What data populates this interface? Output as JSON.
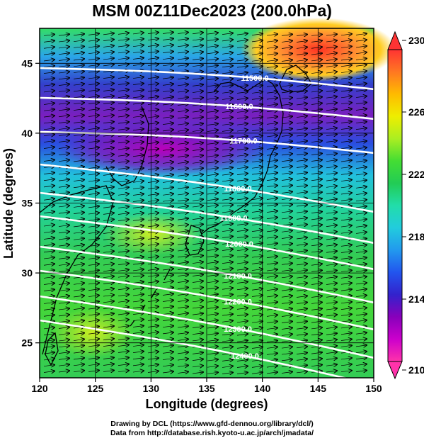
{
  "title": "MSM 00Z11Dec2023 (200.0hPa)",
  "map": {
    "xlabel": "Longitude (degrees)",
    "ylabel": "Latitude  (degrees)",
    "x_ticks": [
      "120",
      "125",
      "130",
      "135",
      "140",
      "145",
      "150"
    ],
    "y_ticks": [
      "25",
      "30",
      "35",
      "40",
      "45"
    ],
    "lon_range": [
      120,
      150
    ],
    "lat_range": [
      22.5,
      47.5
    ],
    "contour_labels": [
      "11500.0",
      "11600.0",
      "11700.0",
      "11800.0",
      "11900.0",
      "12000.0",
      "12100.0",
      "12200.0",
      "12300.0",
      "12400.0"
    ]
  },
  "colorbar": {
    "labels": [
      "230",
      "226",
      "222",
      "218",
      "214",
      "210"
    ],
    "min": 210,
    "max": 230,
    "colors": [
      "#ff33aa",
      "#cc00cc",
      "#8800bb",
      "#3322cc",
      "#2255ee",
      "#2299ee",
      "#22ccdd",
      "#22ddaa",
      "#22cc55",
      "#44dd33",
      "#aaee22",
      "#eeee00",
      "#ffbb00",
      "#ff7722",
      "#ff3333"
    ]
  },
  "credit": {
    "line1": "Drawing by DCL (https://www.gfd-dennou.org/library/dcl/)",
    "line2": "Data from http://database.rish.kyoto-u.ac.jp/arch/jmadata/"
  }
}
